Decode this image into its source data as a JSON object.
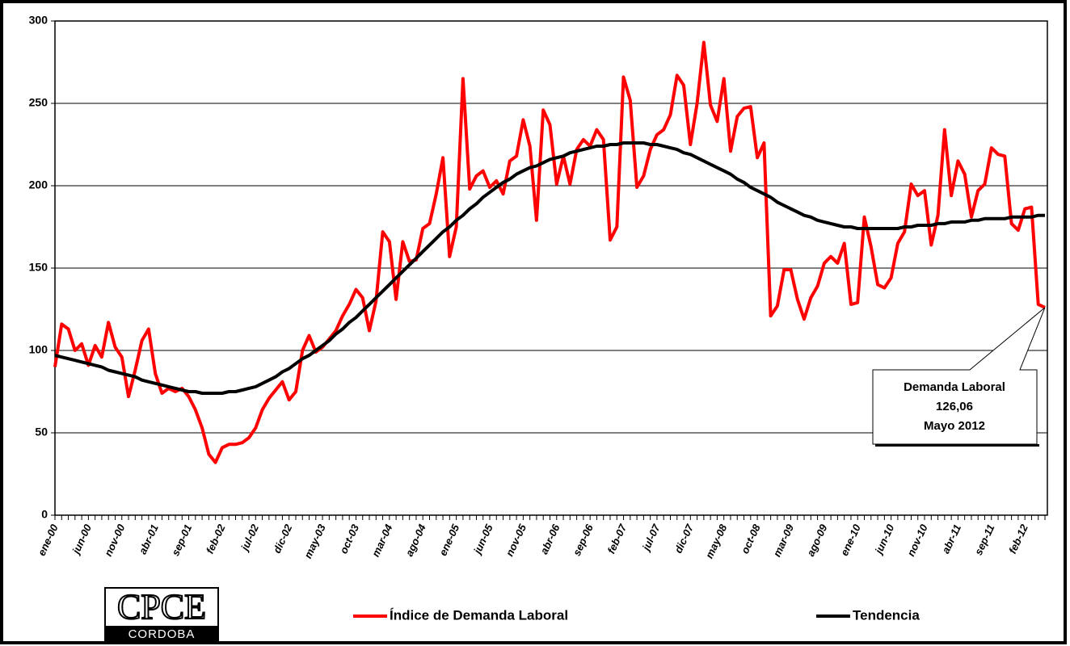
{
  "chart_data": {
    "type": "line",
    "categories": [
      "ene-00",
      null,
      null,
      null,
      null,
      "jun-00",
      null,
      null,
      null,
      null,
      "nov-00",
      null,
      null,
      null,
      null,
      "abr-01",
      null,
      null,
      null,
      null,
      "sep-01",
      null,
      null,
      null,
      null,
      "feb-02",
      null,
      null,
      null,
      null,
      "jul-02",
      null,
      null,
      null,
      null,
      "dic-02",
      null,
      null,
      null,
      null,
      "may-03",
      null,
      null,
      null,
      null,
      "oct-03",
      null,
      null,
      null,
      null,
      "mar-04",
      null,
      null,
      null,
      null,
      "ago-04",
      null,
      null,
      null,
      null,
      "ene-05",
      null,
      null,
      null,
      null,
      "jun-05",
      null,
      null,
      null,
      null,
      "nov-05",
      null,
      null,
      null,
      null,
      "abr-06",
      null,
      null,
      null,
      null,
      "sep-06",
      null,
      null,
      null,
      null,
      "feb-07",
      null,
      null,
      null,
      null,
      "jul-07",
      null,
      null,
      null,
      null,
      "dic-07",
      null,
      null,
      null,
      null,
      "may-08",
      null,
      null,
      null,
      null,
      "oct-08",
      null,
      null,
      null,
      null,
      "mar-09",
      null,
      null,
      null,
      null,
      "ago-09",
      null,
      null,
      null,
      null,
      "ene-10",
      null,
      null,
      null,
      null,
      "jun-10",
      null,
      null,
      null,
      null,
      "nov-10",
      null,
      null,
      null,
      null,
      "abr-11",
      null,
      null,
      null,
      null,
      "sep-11",
      null,
      null,
      null,
      null,
      "feb-12",
      null,
      null,
      null
    ],
    "series": [
      {
        "name": "Índice de Demanda Laboral",
        "color": "#ff0000",
        "values": [
          90,
          116,
          113,
          100,
          104,
          91,
          103,
          96,
          117,
          102,
          96,
          72,
          88,
          106,
          113,
          86,
          74,
          77,
          75,
          77,
          72,
          64,
          53,
          37,
          32,
          41,
          43,
          43,
          44,
          47,
          53,
          64,
          71,
          76,
          81,
          70,
          75,
          100,
          109,
          99,
          102,
          107,
          112,
          121,
          128,
          137,
          132,
          112,
          130,
          172,
          166,
          131,
          166,
          154,
          155,
          174,
          177,
          195,
          217,
          157,
          175,
          265,
          198,
          206,
          209,
          199,
          203,
          195,
          215,
          218,
          240,
          224,
          179,
          246,
          237,
          201,
          218,
          201,
          222,
          228,
          224,
          234,
          228,
          167,
          175,
          266,
          252,
          199,
          206,
          222,
          231,
          234,
          243,
          267,
          261,
          225,
          250,
          287,
          249,
          239,
          265,
          221,
          242,
          247,
          248,
          217,
          226,
          121,
          127,
          149,
          149,
          131,
          119,
          132,
          139,
          153,
          157,
          153,
          165,
          128,
          129,
          181,
          163,
          140,
          138,
          144,
          165,
          172,
          201,
          194,
          197,
          164,
          182,
          234,
          194,
          215,
          207,
          181,
          197,
          201,
          223,
          219,
          218,
          177,
          173,
          186,
          187,
          128,
          126.06
        ]
      },
      {
        "name": "Tendencia",
        "color": "#000000",
        "values": [
          97,
          96,
          95,
          94,
          93,
          92,
          91,
          90,
          88,
          87,
          86,
          85,
          84,
          82,
          81,
          80,
          79,
          78,
          77,
          76,
          75,
          75,
          74,
          74,
          74,
          74,
          75,
          75,
          76,
          77,
          78,
          80,
          82,
          84,
          87,
          89,
          92,
          95,
          97,
          100,
          103,
          106,
          110,
          113,
          117,
          120,
          124,
          128,
          132,
          136,
          140,
          144,
          148,
          152,
          156,
          160,
          164,
          168,
          172,
          175,
          179,
          182,
          186,
          189,
          193,
          196,
          199,
          202,
          204,
          207,
          209,
          211,
          212,
          214,
          216,
          217,
          218,
          220,
          221,
          222,
          223,
          224,
          224,
          225,
          225,
          226,
          226,
          226,
          226,
          225,
          225,
          224,
          223,
          222,
          220,
          219,
          217,
          215,
          213,
          211,
          209,
          207,
          204,
          202,
          199,
          197,
          195,
          193,
          190,
          188,
          186,
          184,
          182,
          181,
          179,
          178,
          177,
          176,
          175,
          175,
          174,
          174,
          174,
          174,
          174,
          174,
          174,
          175,
          175,
          176,
          176,
          176,
          177,
          177,
          178,
          178,
          178,
          179,
          179,
          180,
          180,
          180,
          180,
          181,
          181,
          181,
          181,
          182,
          182
        ]
      }
    ],
    "ylim": [
      0,
      300
    ],
    "yticks": [
      0,
      50,
      100,
      150,
      200,
      250,
      300
    ],
    "grid": true,
    "legend": "bottom",
    "annotation": [
      "Demanda Laboral",
      "126,06",
      "Mayo 2012"
    ],
    "logo": [
      "CPCE",
      "CORDOBA"
    ]
  }
}
